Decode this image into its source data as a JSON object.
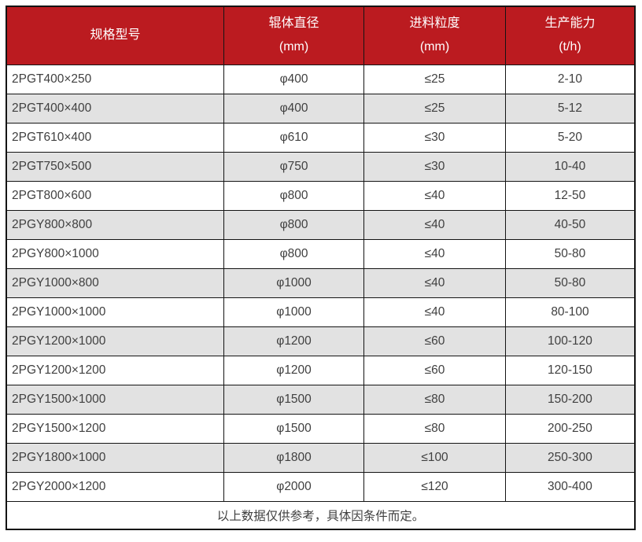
{
  "table": {
    "columns": [
      {
        "title": "规格型号",
        "unit": ""
      },
      {
        "title": "辊体直径",
        "unit": "(mm)"
      },
      {
        "title": "进料粒度",
        "unit": "(mm)"
      },
      {
        "title": "生产能力",
        "unit": "(t/h)"
      }
    ],
    "rows": [
      [
        "2PGT400×250",
        "φ400",
        "≤25",
        "2-10"
      ],
      [
        "2PGT400×400",
        "φ400",
        "≤25",
        "5-12"
      ],
      [
        "2PGT610×400",
        "φ610",
        "≤30",
        "5-20"
      ],
      [
        "2PGT750×500",
        "φ750",
        "≤30",
        "10-40"
      ],
      [
        "2PGT800×600",
        "φ800",
        "≤40",
        "12-50"
      ],
      [
        "2PGY800×800",
        "φ800",
        "≤40",
        "40-50"
      ],
      [
        "2PGY800×1000",
        "φ800",
        "≤40",
        "50-80"
      ],
      [
        "2PGY1000×800",
        "φ1000",
        "≤40",
        "50-80"
      ],
      [
        "2PGY1000×1000",
        "φ1000",
        "≤40",
        "80-100"
      ],
      [
        "2PGY1200×1000",
        "φ1200",
        "≤60",
        "100-120"
      ],
      [
        "2PGY1200×1200",
        "φ1200",
        "≤60",
        "120-150"
      ],
      [
        "2PGY1500×1000",
        "φ1500",
        "≤80",
        "150-200"
      ],
      [
        "2PGY1500×1200",
        "φ1500",
        "≤80",
        "200-250"
      ],
      [
        "2PGY1800×1000",
        "φ1800",
        "≤100",
        "250-300"
      ],
      [
        "2PGY2000×1200",
        "φ2000",
        "≤120",
        "300-400"
      ]
    ],
    "footer_note": "以上数据仅供参考，具体因条件而定。"
  },
  "colors": {
    "header_bg": "#bb1b20",
    "header_text": "#ffffff",
    "row_bg": "#ffffff",
    "row_alt_bg": "#e2e2e2",
    "border": "#141414",
    "cell_text": "#404040"
  }
}
